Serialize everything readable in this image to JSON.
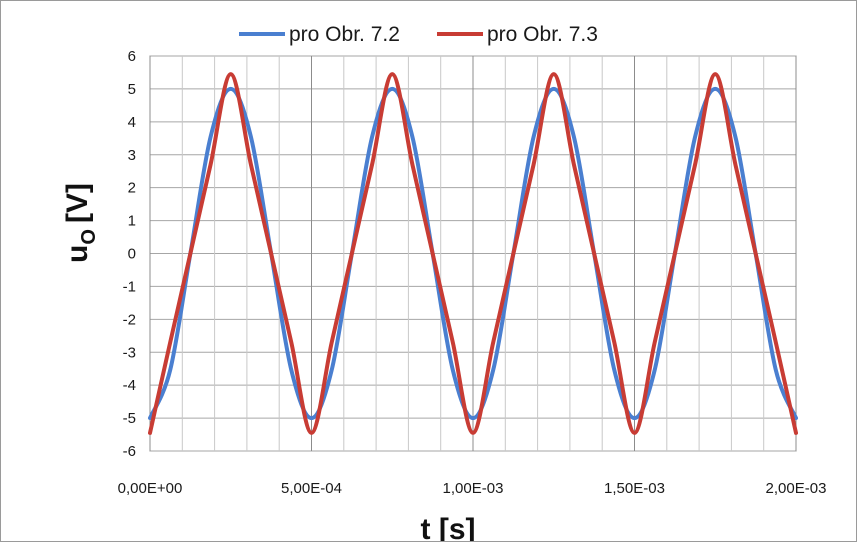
{
  "chart_data": {
    "type": "line",
    "title": "",
    "xlabel": "t [s]",
    "ylabel_main": "u",
    "ylabel_sub": "O",
    "ylabel_unit": "[V]",
    "xlim": [
      0,
      0.002
    ],
    "ylim": [
      -6,
      6
    ],
    "x_ticks": [
      0,
      0.0005,
      0.001,
      0.0015,
      0.002
    ],
    "x_tick_labels": [
      "0,00E+00",
      "5,00E-04",
      "1,00E-03",
      "1,50E-03",
      "2,00E-03"
    ],
    "y_ticks": [
      -6,
      -5,
      -4,
      -3,
      -2,
      -1,
      0,
      1,
      2,
      3,
      4,
      5,
      6
    ],
    "y_tick_labels": [
      "-6",
      "-5",
      "-4",
      "-3",
      "-2",
      "-1",
      "0",
      "1",
      "2",
      "3",
      "4",
      "5",
      "6"
    ],
    "grid": true,
    "legend_position": "top",
    "x": [
      0,
      6.25e-05,
      0.000125,
      0.0001875,
      0.00025,
      0.0003125,
      0.000375,
      0.0004375,
      0.0005,
      0.0005625,
      0.000625,
      0.0006875,
      0.00075,
      0.0008125,
      0.000875,
      0.0009375,
      0.001,
      0.0010625,
      0.001125,
      0.0011875,
      0.00125,
      0.0013125,
      0.001375,
      0.0014375,
      0.0015,
      0.0015625,
      0.001625,
      0.0016875,
      0.00175,
      0.0018125,
      0.001875,
      0.0019375,
      0.002
    ],
    "series": [
      {
        "name": "pro Obr. 7.2",
        "color": "#4a7fd0",
        "values": [
          -5.0,
          -3.54,
          0.0,
          3.54,
          5.0,
          3.54,
          0.0,
          -3.54,
          -5.0,
          -3.54,
          0.0,
          3.54,
          5.0,
          3.54,
          0.0,
          -3.54,
          -5.0,
          -3.54,
          0.0,
          3.54,
          5.0,
          3.54,
          0.0,
          -3.54,
          -5.0,
          -3.54,
          0.0,
          3.54,
          5.0,
          3.54,
          0.0,
          -3.54,
          -5.0
        ]
      },
      {
        "name": "pro Obr. 7.3",
        "color": "#c83c34",
        "values": [
          -5.45,
          -2.7,
          0.0,
          2.7,
          5.45,
          2.7,
          0.0,
          -2.7,
          -5.45,
          -2.7,
          0.0,
          2.7,
          5.45,
          2.7,
          0.0,
          -2.7,
          -5.45,
          -2.7,
          0.0,
          2.7,
          5.45,
          2.7,
          0.0,
          -2.7,
          -5.45,
          -2.7,
          0.0,
          2.7,
          5.45,
          2.7,
          0.0,
          -2.7,
          -5.45
        ]
      }
    ]
  }
}
